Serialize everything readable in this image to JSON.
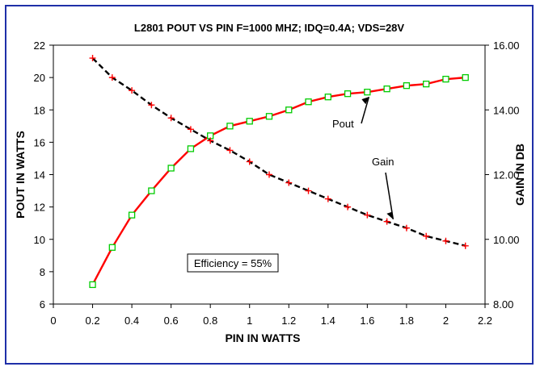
{
  "chart_data": {
    "type": "line",
    "title": "L2801  POUT VS PIN F=1000 MHZ; IDQ=0.4A; VDS=28V",
    "xlabel": "PIN IN WATTS",
    "ylabel": "POUT IN WATTS",
    "y2label": "GAIN IN DB",
    "xlim": [
      0,
      2.2
    ],
    "ylim": [
      6,
      22
    ],
    "y2lim": [
      8,
      16
    ],
    "x_ticks": [
      "0",
      "0.2",
      "0.4",
      "0.6",
      "0.8",
      "1",
      "1.2",
      "1.4",
      "1.6",
      "1.8",
      "2",
      "2.2"
    ],
    "y_ticks": [
      "6",
      "8",
      "10",
      "12",
      "14",
      "16",
      "18",
      "20",
      "22"
    ],
    "y2_ticks": [
      "8.00",
      "10.00",
      "12.00",
      "14.00",
      "16.00"
    ],
    "grid": false,
    "series": [
      {
        "name": "Pout",
        "axis": "left",
        "color": "#ff0000",
        "marker": "square",
        "marker_color": "#00cc00",
        "line_style": "solid",
        "x": [
          0.2,
          0.3,
          0.4,
          0.5,
          0.6,
          0.7,
          0.8,
          0.9,
          1.0,
          1.1,
          1.2,
          1.3,
          1.4,
          1.5,
          1.6,
          1.7,
          1.8,
          1.9,
          2.0,
          2.1
        ],
        "values": [
          7.2,
          9.5,
          11.5,
          13.0,
          14.4,
          15.6,
          16.4,
          17.0,
          17.3,
          17.6,
          18.0,
          18.5,
          18.8,
          19.0,
          19.1,
          19.3,
          19.5,
          19.6,
          19.9,
          20.0
        ]
      },
      {
        "name": "Gain",
        "axis": "right",
        "color": "#000000",
        "marker": "plus",
        "marker_color": "#ff0000",
        "line_style": "dashed",
        "x": [
          0.2,
          0.3,
          0.4,
          0.5,
          0.6,
          0.7,
          0.8,
          0.9,
          1.0,
          1.1,
          1.2,
          1.3,
          1.4,
          1.5,
          1.6,
          1.7,
          1.8,
          1.9,
          2.0,
          2.1
        ],
        "values": [
          15.6,
          15.0,
          14.6,
          14.15,
          13.75,
          13.4,
          13.05,
          12.75,
          12.4,
          12.0,
          11.75,
          11.5,
          11.25,
          11.0,
          10.75,
          10.55,
          10.35,
          10.1,
          9.95,
          9.8
        ]
      }
    ],
    "annotations": [
      {
        "text": "Pout",
        "series": "Pout"
      },
      {
        "text": "Gain",
        "series": "Gain"
      },
      {
        "text": "Efficiency = 55%",
        "boxed": true
      }
    ],
    "colors": {
      "frame": "#1f2fa8",
      "axis": "#000000"
    }
  }
}
